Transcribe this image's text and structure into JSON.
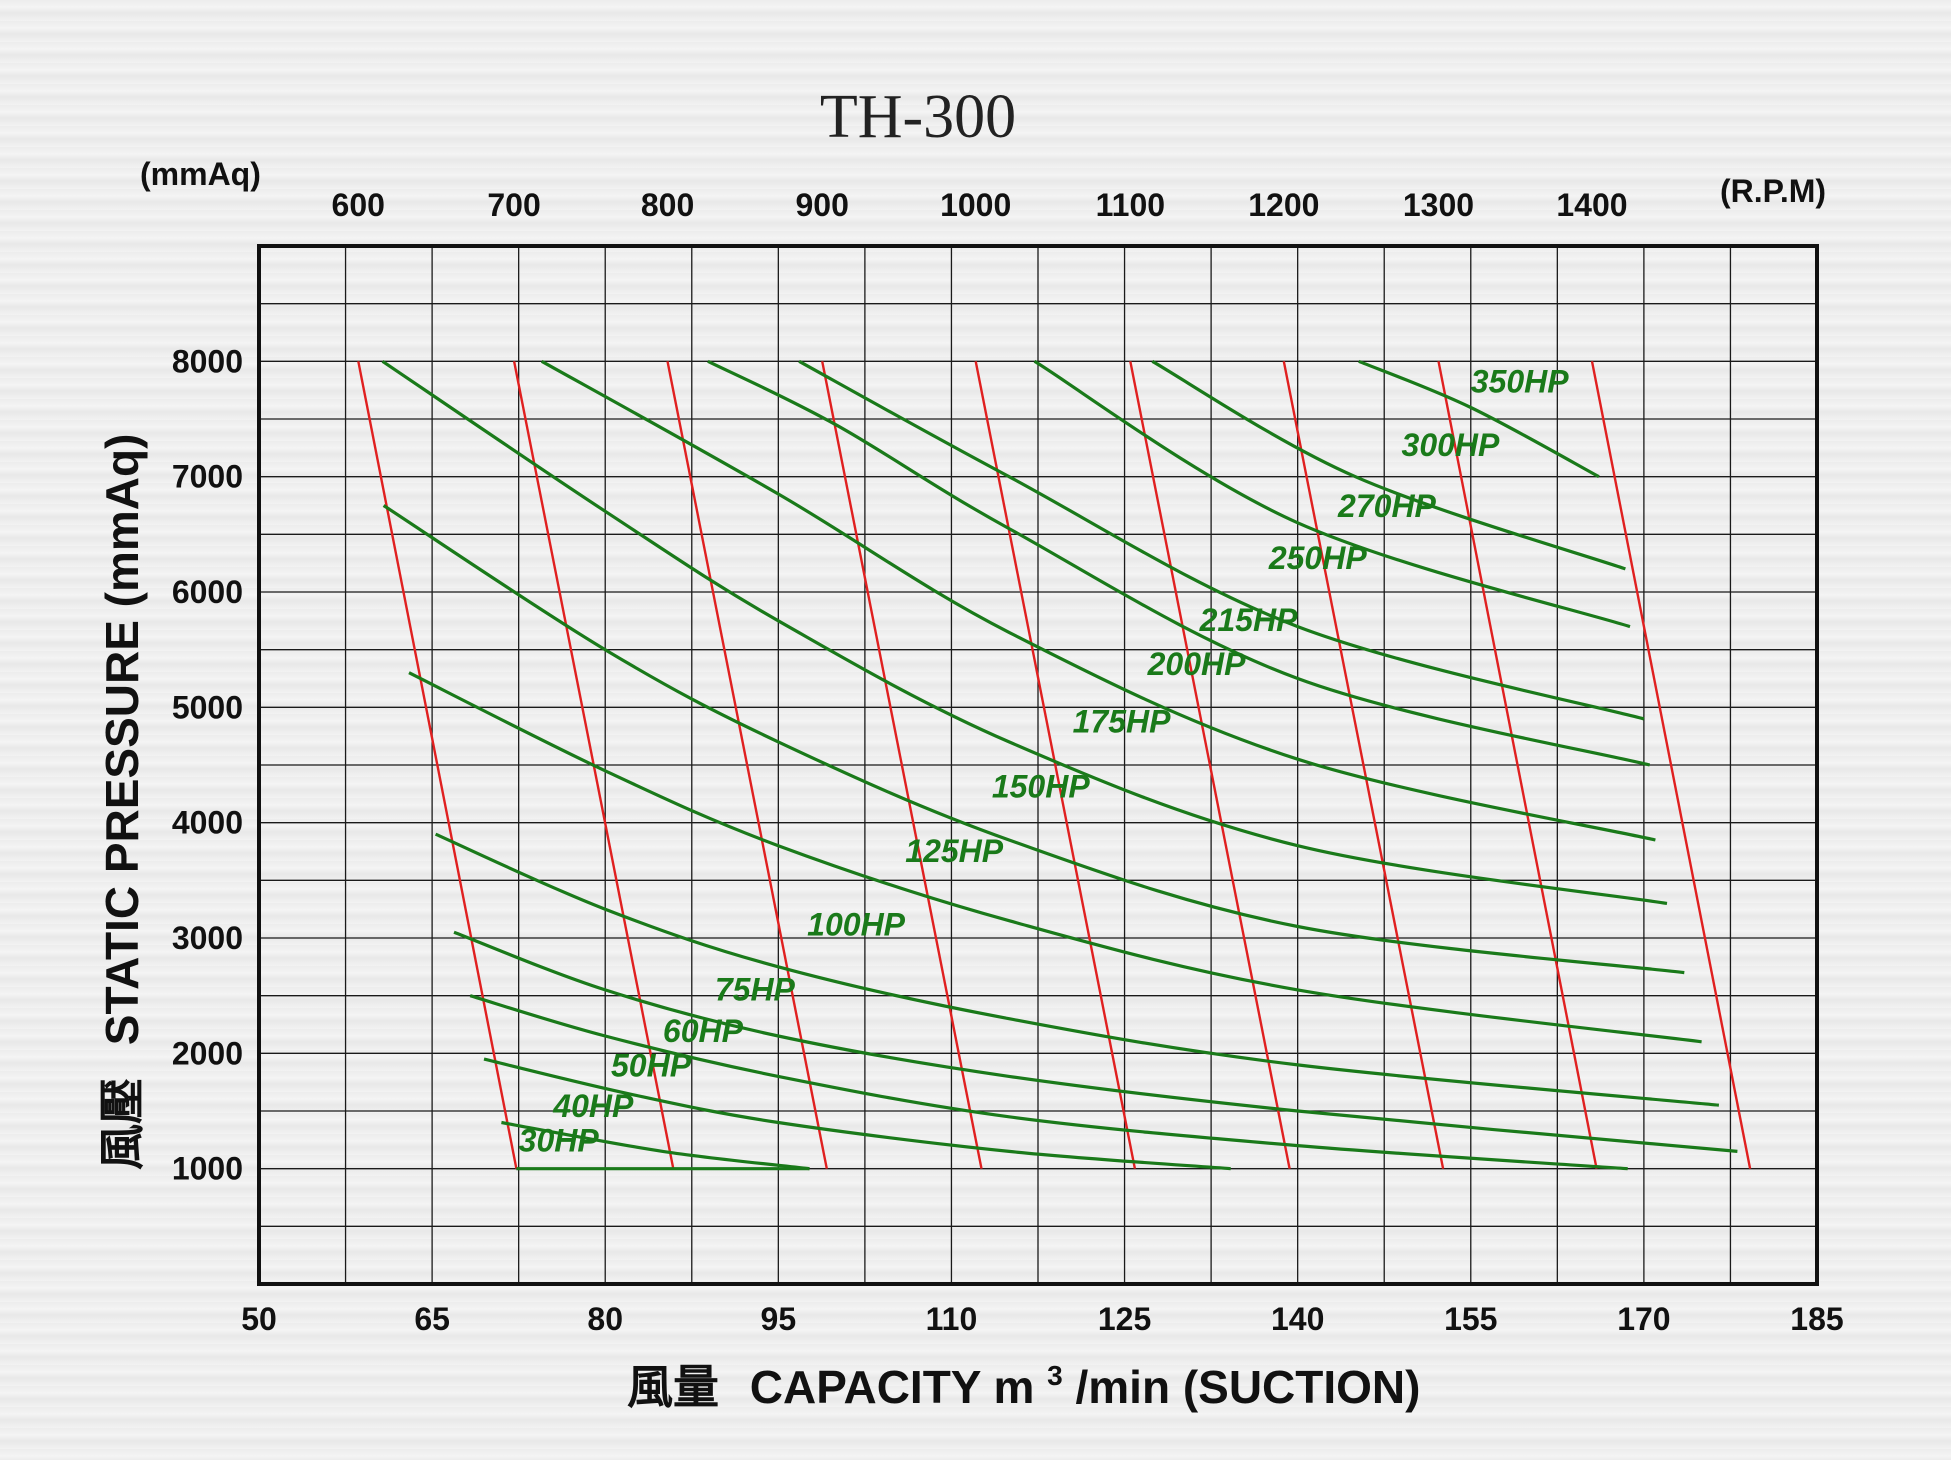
{
  "chart_data": {
    "type": "line",
    "title": "TH-300",
    "y_unit_top": "(mmAq)",
    "rpm_unit": "(R.P.M)",
    "ylabel_cjk": "風壓",
    "ylabel": "STATIC  PRESSURE  (mmAq)",
    "xlabel_cjk": "風量",
    "xlabel": "CAPACITY  m",
    "xlabel_sup": "3",
    "xlabel_rest": "/min (SUCTION)",
    "xlim": [
      50,
      185
    ],
    "ylim": [
      0,
      9000
    ],
    "x_ticks": [
      "50",
      "65",
      "80",
      "95",
      "110",
      "125",
      "140",
      "155",
      "170",
      "185"
    ],
    "y_ticks": [
      "1000",
      "2000",
      "3000",
      "4000",
      "5000",
      "6000",
      "7000",
      "8000"
    ],
    "grid": true,
    "rpm_series": [
      {
        "name": "600",
        "points": [
          [
            58.6,
            8000
          ],
          [
            72.3,
            1000
          ]
        ]
      },
      {
        "name": "700",
        "points": [
          [
            72.1,
            8000
          ],
          [
            85.9,
            1000
          ]
        ]
      },
      {
        "name": "800",
        "points": [
          [
            85.4,
            8000
          ],
          [
            99.2,
            1000
          ]
        ]
      },
      {
        "name": "900",
        "points": [
          [
            98.8,
            8000
          ],
          [
            112.6,
            1000
          ]
        ]
      },
      {
        "name": "1000",
        "points": [
          [
            112.1,
            8000
          ],
          [
            125.9,
            1000
          ]
        ]
      },
      {
        "name": "1100",
        "points": [
          [
            125.5,
            8000
          ],
          [
            139.3,
            1000
          ]
        ]
      },
      {
        "name": "1200",
        "points": [
          [
            138.8,
            8000
          ],
          [
            152.6,
            1000
          ]
        ]
      },
      {
        "name": "1300",
        "points": [
          [
            152.2,
            8000
          ],
          [
            165.9,
            1000
          ]
        ]
      },
      {
        "name": "1400",
        "points": [
          [
            165.5,
            8000
          ],
          [
            179.2,
            1000
          ]
        ]
      }
    ],
    "hp_series": [
      {
        "name": "30HP",
        "points": [
          [
            72.3,
            1000
          ],
          [
            97.7,
            1000
          ]
        ]
      },
      {
        "name": "40HP",
        "points": [
          [
            71.0,
            1400
          ],
          [
            85,
            1150
          ],
          [
            97.7,
            1000
          ]
        ]
      },
      {
        "name": "50HP",
        "points": [
          [
            69.5,
            1950
          ],
          [
            82,
            1650
          ],
          [
            95,
            1400
          ],
          [
            115,
            1150
          ],
          [
            134.2,
            1000
          ]
        ]
      },
      {
        "name": "60HP",
        "points": [
          [
            68.3,
            2500
          ],
          [
            80,
            2150
          ],
          [
            95,
            1800
          ],
          [
            115,
            1450
          ],
          [
            140,
            1200
          ],
          [
            168.6,
            1000
          ]
        ]
      },
      {
        "name": "75HP",
        "points": [
          [
            66.9,
            3050
          ],
          [
            80,
            2550
          ],
          [
            95,
            2150
          ],
          [
            115,
            1800
          ],
          [
            140,
            1500
          ],
          [
            178.1,
            1150
          ]
        ]
      },
      {
        "name": "100HP",
        "points": [
          [
            65.3,
            3900
          ],
          [
            80,
            3250
          ],
          [
            95,
            2750
          ],
          [
            115,
            2300
          ],
          [
            140,
            1900
          ],
          [
            176.5,
            1550
          ]
        ]
      },
      {
        "name": "125HP",
        "points": [
          [
            63.0,
            5300
          ],
          [
            80,
            4450
          ],
          [
            95,
            3800
          ],
          [
            115,
            3150
          ],
          [
            140,
            2550
          ],
          [
            175.0,
            2100
          ]
        ]
      },
      {
        "name": "150HP",
        "points": [
          [
            60.8,
            6750
          ],
          [
            80,
            5500
          ],
          [
            95,
            4700
          ],
          [
            115,
            3850
          ],
          [
            140,
            3100
          ],
          [
            173.5,
            2700
          ]
        ]
      },
      {
        "name": "175HP",
        "points": [
          [
            60.7,
            8000
          ],
          [
            80,
            6700
          ],
          [
            95,
            5750
          ],
          [
            115,
            4700
          ],
          [
            140,
            3800
          ],
          [
            172.0,
            3300
          ]
        ]
      },
      {
        "name": "200HP",
        "points": [
          [
            74.5,
            8000
          ],
          [
            95,
            6850
          ],
          [
            115,
            5650
          ],
          [
            140,
            4550
          ],
          [
            171.0,
            3850
          ]
        ]
      },
      {
        "name": "215HP",
        "points": [
          [
            88.9,
            8000
          ],
          [
            100,
            7450
          ],
          [
            115,
            6550
          ],
          [
            140,
            5250
          ],
          [
            170.5,
            4500
          ]
        ]
      },
      {
        "name": "250HP",
        "points": [
          [
            96.8,
            8000
          ],
          [
            115,
            7000
          ],
          [
            140,
            5700
          ],
          [
            170.0,
            4900
          ]
        ]
      },
      {
        "name": "270HP",
        "points": [
          [
            117.2,
            8000
          ],
          [
            140,
            6600
          ],
          [
            168.8,
            5700
          ]
        ]
      },
      {
        "name": "300HP",
        "points": [
          [
            127.4,
            8000
          ],
          [
            145,
            7000
          ],
          [
            168.4,
            6200
          ]
        ]
      },
      {
        "name": "350HP",
        "points": [
          [
            145.3,
            8000
          ],
          [
            155,
            7600
          ],
          [
            166.1,
            7000
          ]
        ]
      }
    ],
    "hp_labels": [
      {
        "text": "30HP",
        "x": 72.5,
        "y": 1150
      },
      {
        "text": "40HP",
        "x": 75.5,
        "y": 1450
      },
      {
        "text": "50HP",
        "x": 80.5,
        "y": 1800
      },
      {
        "text": "60HP",
        "x": 85.0,
        "y": 2100
      },
      {
        "text": "75HP",
        "x": 89.5,
        "y": 2460
      },
      {
        "text": "100HP",
        "x": 97.5,
        "y": 3020
      },
      {
        "text": "125HP",
        "x": 106.0,
        "y": 3660
      },
      {
        "text": "150HP",
        "x": 113.5,
        "y": 4220
      },
      {
        "text": "175HP",
        "x": 120.5,
        "y": 4780
      },
      {
        "text": "200HP",
        "x": 127.0,
        "y": 5280
      },
      {
        "text": "215HP",
        "x": 131.5,
        "y": 5660
      },
      {
        "text": "250HP",
        "x": 137.5,
        "y": 6200
      },
      {
        "text": "270HP",
        "x": 143.5,
        "y": 6650
      },
      {
        "text": "300HP",
        "x": 149.0,
        "y": 7180
      },
      {
        "text": "350HP",
        "x": 155.0,
        "y": 7730
      }
    ]
  }
}
